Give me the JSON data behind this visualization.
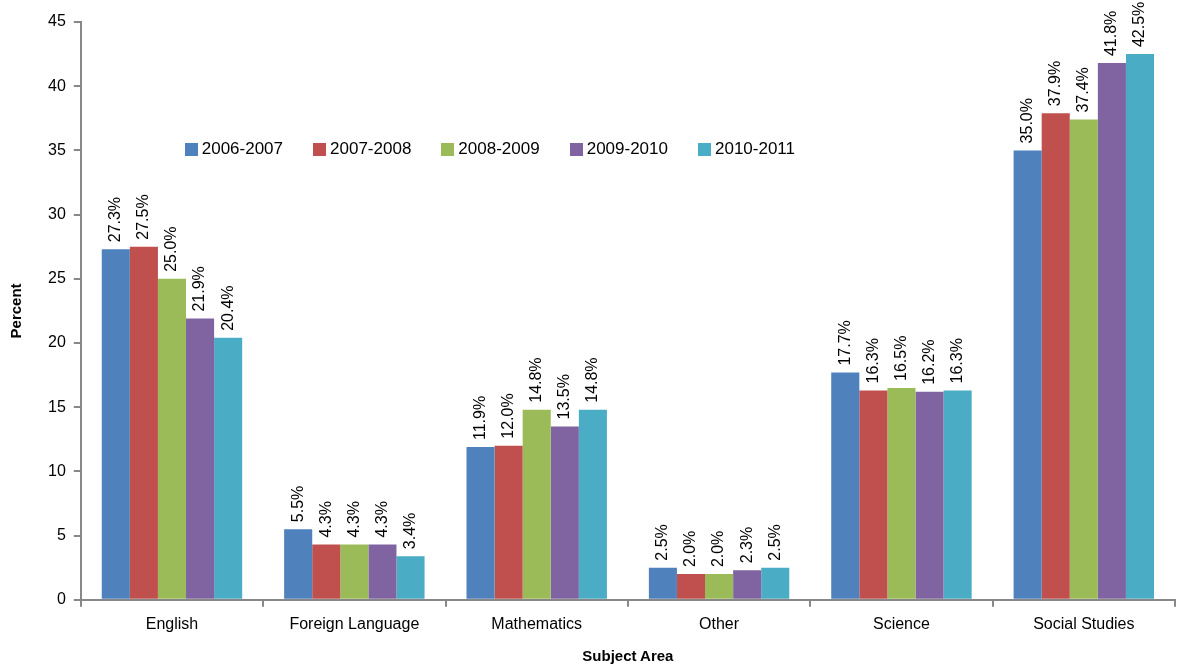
{
  "chart_data": {
    "type": "bar",
    "xlabel": "Subject Area",
    "ylabel": "Percent",
    "categories": [
      "English",
      "Foreign Language",
      "Mathematics",
      "Other",
      "Science",
      "Social Studies"
    ],
    "ylim": [
      0,
      45
    ],
    "yticks": [
      0,
      5,
      10,
      15,
      20,
      25,
      30,
      35,
      40,
      45
    ],
    "legend": "top left",
    "series": [
      {
        "name": "2006-2007",
        "color": "#4f81bd",
        "values": [
          27.3,
          5.5,
          11.9,
          2.5,
          17.7,
          35.0
        ],
        "value_labels": [
          "27.3%",
          "5.5%",
          "11.9%",
          "2.5%",
          "17.7%",
          "35.0%"
        ]
      },
      {
        "name": "2007-2008",
        "color": "#c0504d",
        "values": [
          27.5,
          4.3,
          12.0,
          2.0,
          16.3,
          37.9
        ],
        "value_labels": [
          "27.5%",
          "4.3%",
          "12.0%",
          "2.0%",
          "16.3%",
          "37.9%"
        ]
      },
      {
        "name": "2008-2009",
        "color": "#9bbb59",
        "values": [
          25.0,
          4.3,
          14.8,
          2.0,
          16.5,
          37.4
        ],
        "value_labels": [
          "25.0%",
          "4.3%",
          "14.8%",
          "2.0%",
          "16.5%",
          "37.4%"
        ]
      },
      {
        "name": "2009-2010",
        "color": "#8064a2",
        "values": [
          21.9,
          4.3,
          13.5,
          2.3,
          16.2,
          41.8
        ],
        "value_labels": [
          "21.9%",
          "4.3%",
          "13.5%",
          "2.3%",
          "16.2%",
          "41.8%"
        ]
      },
      {
        "name": "2010-2011",
        "color": "#4bacc6",
        "values": [
          20.4,
          3.4,
          14.8,
          2.5,
          16.3,
          42.5
        ],
        "value_labels": [
          "20.4%",
          "3.4%",
          "14.8%",
          "2.5%",
          "16.3%",
          "42.5%"
        ]
      }
    ]
  }
}
